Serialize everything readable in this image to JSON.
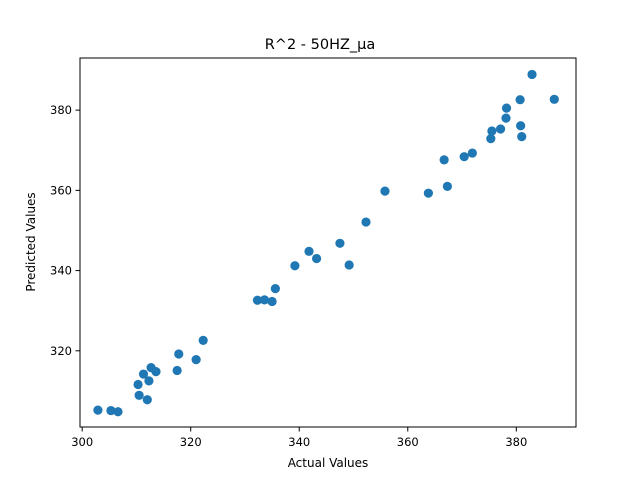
{
  "chart_data": {
    "type": "scatter",
    "title": "R^2 - 50HZ_µa",
    "xlabel": "Actual Values",
    "ylabel": "Predicted Values",
    "xlim": [
      299.6,
      391.0
    ],
    "ylim": [
      301.0,
      393.0
    ],
    "xticks": [
      300,
      320,
      340,
      360,
      380
    ],
    "yticks": [
      320,
      340,
      360,
      380
    ],
    "grid": false,
    "marker_color": "#1f77b4",
    "series": [
      {
        "points": [
          [
            302.9,
            305.2
          ],
          [
            305.3,
            305.1
          ],
          [
            306.6,
            304.8
          ],
          [
            310.3,
            311.6
          ],
          [
            310.5,
            308.9
          ],
          [
            311.3,
            314.2
          ],
          [
            312.0,
            307.8
          ],
          [
            312.3,
            312.5
          ],
          [
            312.7,
            315.8
          ],
          [
            313.6,
            314.8
          ],
          [
            317.5,
            315.1
          ],
          [
            317.8,
            319.2
          ],
          [
            321.0,
            317.8
          ],
          [
            322.3,
            322.6
          ],
          [
            332.3,
            332.6
          ],
          [
            333.6,
            332.7
          ],
          [
            335.0,
            332.3
          ],
          [
            335.6,
            335.5
          ],
          [
            339.2,
            341.2
          ],
          [
            341.8,
            344.8
          ],
          [
            343.2,
            343.0
          ],
          [
            347.5,
            346.8
          ],
          [
            349.2,
            341.4
          ],
          [
            352.3,
            352.1
          ],
          [
            355.8,
            359.8
          ],
          [
            363.8,
            359.3
          ],
          [
            366.7,
            367.6
          ],
          [
            367.3,
            361.0
          ],
          [
            370.4,
            368.4
          ],
          [
            371.9,
            369.3
          ],
          [
            375.3,
            372.9
          ],
          [
            375.5,
            374.8
          ],
          [
            377.1,
            375.3
          ],
          [
            378.1,
            378.0
          ],
          [
            378.2,
            380.5
          ],
          [
            380.7,
            382.6
          ],
          [
            380.8,
            376.1
          ],
          [
            381.0,
            373.4
          ],
          [
            382.9,
            388.9
          ],
          [
            387.0,
            382.7
          ]
        ]
      }
    ]
  }
}
